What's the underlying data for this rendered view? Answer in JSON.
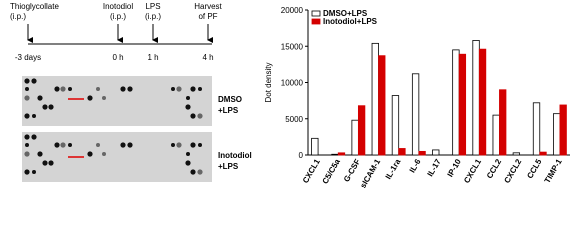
{
  "timeline": {
    "events": [
      {
        "label": [
          "Thioglycollate",
          "(i.p.)"
        ],
        "time": "-3 days"
      },
      {
        "label": [
          "Inotodiol",
          "(i.p.)"
        ],
        "time": "0 h"
      },
      {
        "label": [
          "LPS",
          "(i.p.)"
        ],
        "time": "1 h"
      },
      {
        "label": [
          "Harvest",
          "of PF"
        ],
        "time": "4 h"
      }
    ]
  },
  "blots": [
    {
      "label": [
        "DMSO",
        "+LPS"
      ]
    },
    {
      "label": [
        "Inotodiol",
        "+LPS"
      ]
    }
  ],
  "chart_data": {
    "type": "bar",
    "y_label": "Dot density",
    "categories": [
      "CXCL1",
      "C5/C5a",
      "G-CSF",
      "sICAM-1",
      "IL-1ra",
      "IL-6",
      "IL-17",
      "IP-10",
      "CXCL1",
      "CCL2",
      "CXCL2",
      "CCL5",
      "TIMP-1"
    ],
    "series": [
      {
        "name": "DMSO+LPS",
        "color": "#ffffff",
        "values": [
          2300,
          100,
          4800,
          15400,
          8200,
          11200,
          700,
          14500,
          15800,
          5500,
          300,
          7200,
          5700
        ]
      },
      {
        "name": "Inotodiol+LPS",
        "color": "#d40000",
        "values": [
          0,
          300,
          6800,
          13700,
          900,
          500,
          0,
          13900,
          14600,
          9000,
          0,
          400,
          6900
        ]
      }
    ],
    "ylim": [
      0,
      20000
    ],
    "yticks": [
      0,
      5000,
      10000,
      15000,
      20000
    ],
    "legend": "upper-left"
  }
}
